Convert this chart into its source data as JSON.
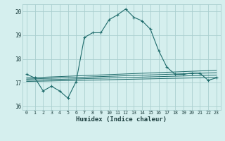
{
  "xlabel": "Humidex (Indice chaleur)",
  "ylabel": "",
  "background_color": "#d5efee",
  "grid_color": "#aacfcf",
  "line_color": "#1e6b6b",
  "xlim": [
    -0.5,
    23.5
  ],
  "ylim": [
    15.85,
    20.3
  ],
  "yticks": [
    16,
    17,
    18,
    19,
    20
  ],
  "xticks": [
    0,
    1,
    2,
    3,
    4,
    5,
    6,
    7,
    8,
    9,
    10,
    11,
    12,
    13,
    14,
    15,
    16,
    17,
    18,
    19,
    20,
    21,
    22,
    23
  ],
  "main_series": [
    [
      0,
      17.35
    ],
    [
      1,
      17.2
    ],
    [
      2,
      16.65
    ],
    [
      3,
      16.85
    ],
    [
      4,
      16.65
    ],
    [
      5,
      16.35
    ],
    [
      6,
      17.05
    ],
    [
      7,
      18.9
    ],
    [
      8,
      19.1
    ],
    [
      9,
      19.1
    ],
    [
      10,
      19.65
    ],
    [
      11,
      19.85
    ],
    [
      12,
      20.1
    ],
    [
      13,
      19.75
    ],
    [
      14,
      19.6
    ],
    [
      15,
      19.25
    ],
    [
      16,
      18.35
    ],
    [
      17,
      17.65
    ],
    [
      18,
      17.35
    ],
    [
      19,
      17.35
    ],
    [
      20,
      17.4
    ],
    [
      21,
      17.4
    ],
    [
      22,
      17.1
    ],
    [
      23,
      17.2
    ]
  ],
  "linear_series": [
    [
      [
        0,
        17.05
      ],
      [
        23,
        17.22
      ]
    ],
    [
      [
        0,
        17.1
      ],
      [
        23,
        17.32
      ]
    ],
    [
      [
        0,
        17.15
      ],
      [
        23,
        17.42
      ]
    ],
    [
      [
        0,
        17.2
      ],
      [
        23,
        17.52
      ]
    ]
  ]
}
